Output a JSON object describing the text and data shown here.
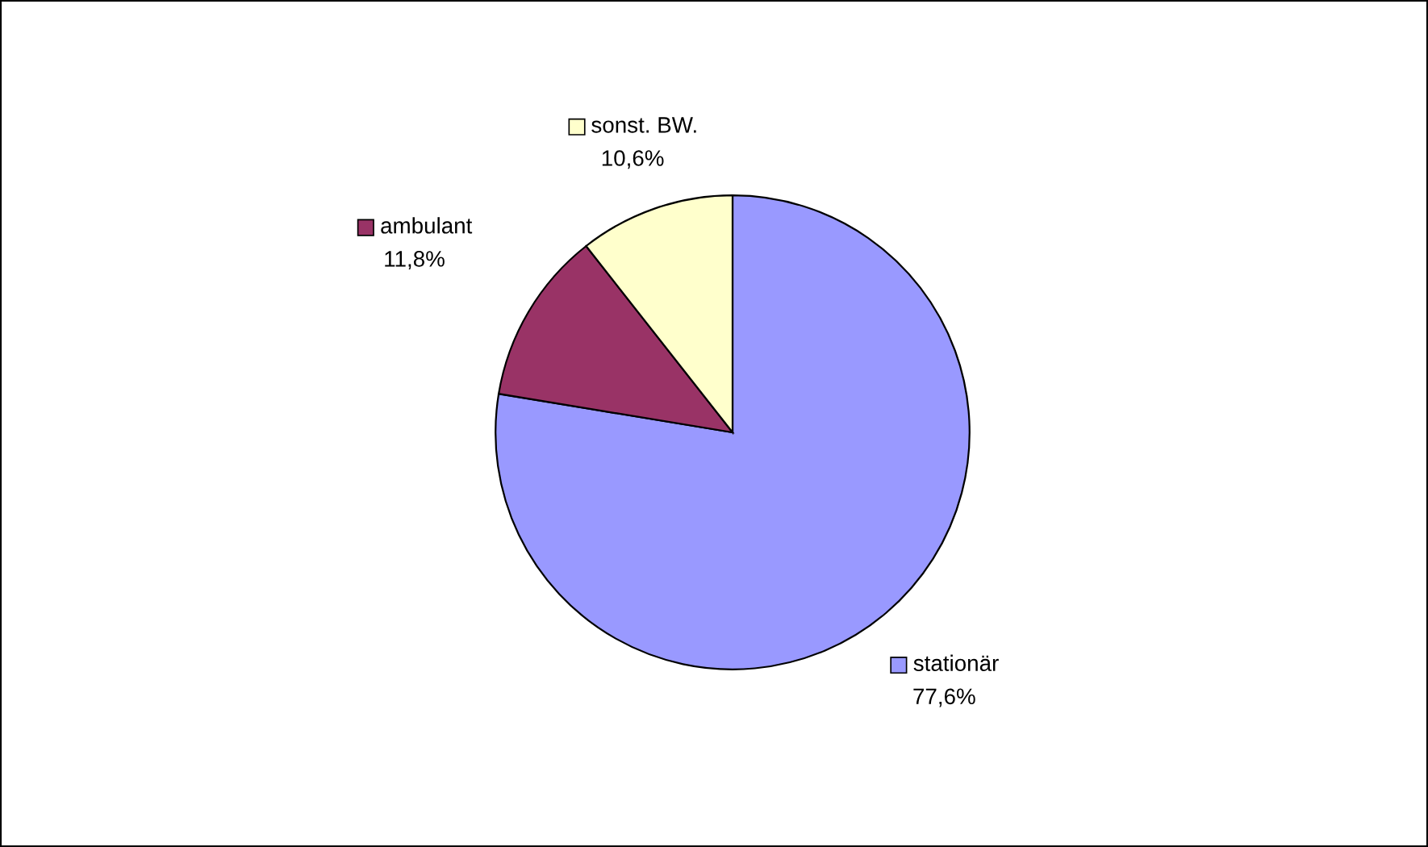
{
  "chart_data": {
    "type": "pie",
    "categories": [
      "stationär",
      "ambulant",
      "sonst. BW."
    ],
    "values": [
      77.6,
      11.8,
      10.6
    ],
    "colors": [
      "#9999ff",
      "#993366",
      "#ffffcc"
    ],
    "value_labels": [
      "77,6%",
      "11,8%",
      "10,6%"
    ],
    "legend": "center"
  }
}
